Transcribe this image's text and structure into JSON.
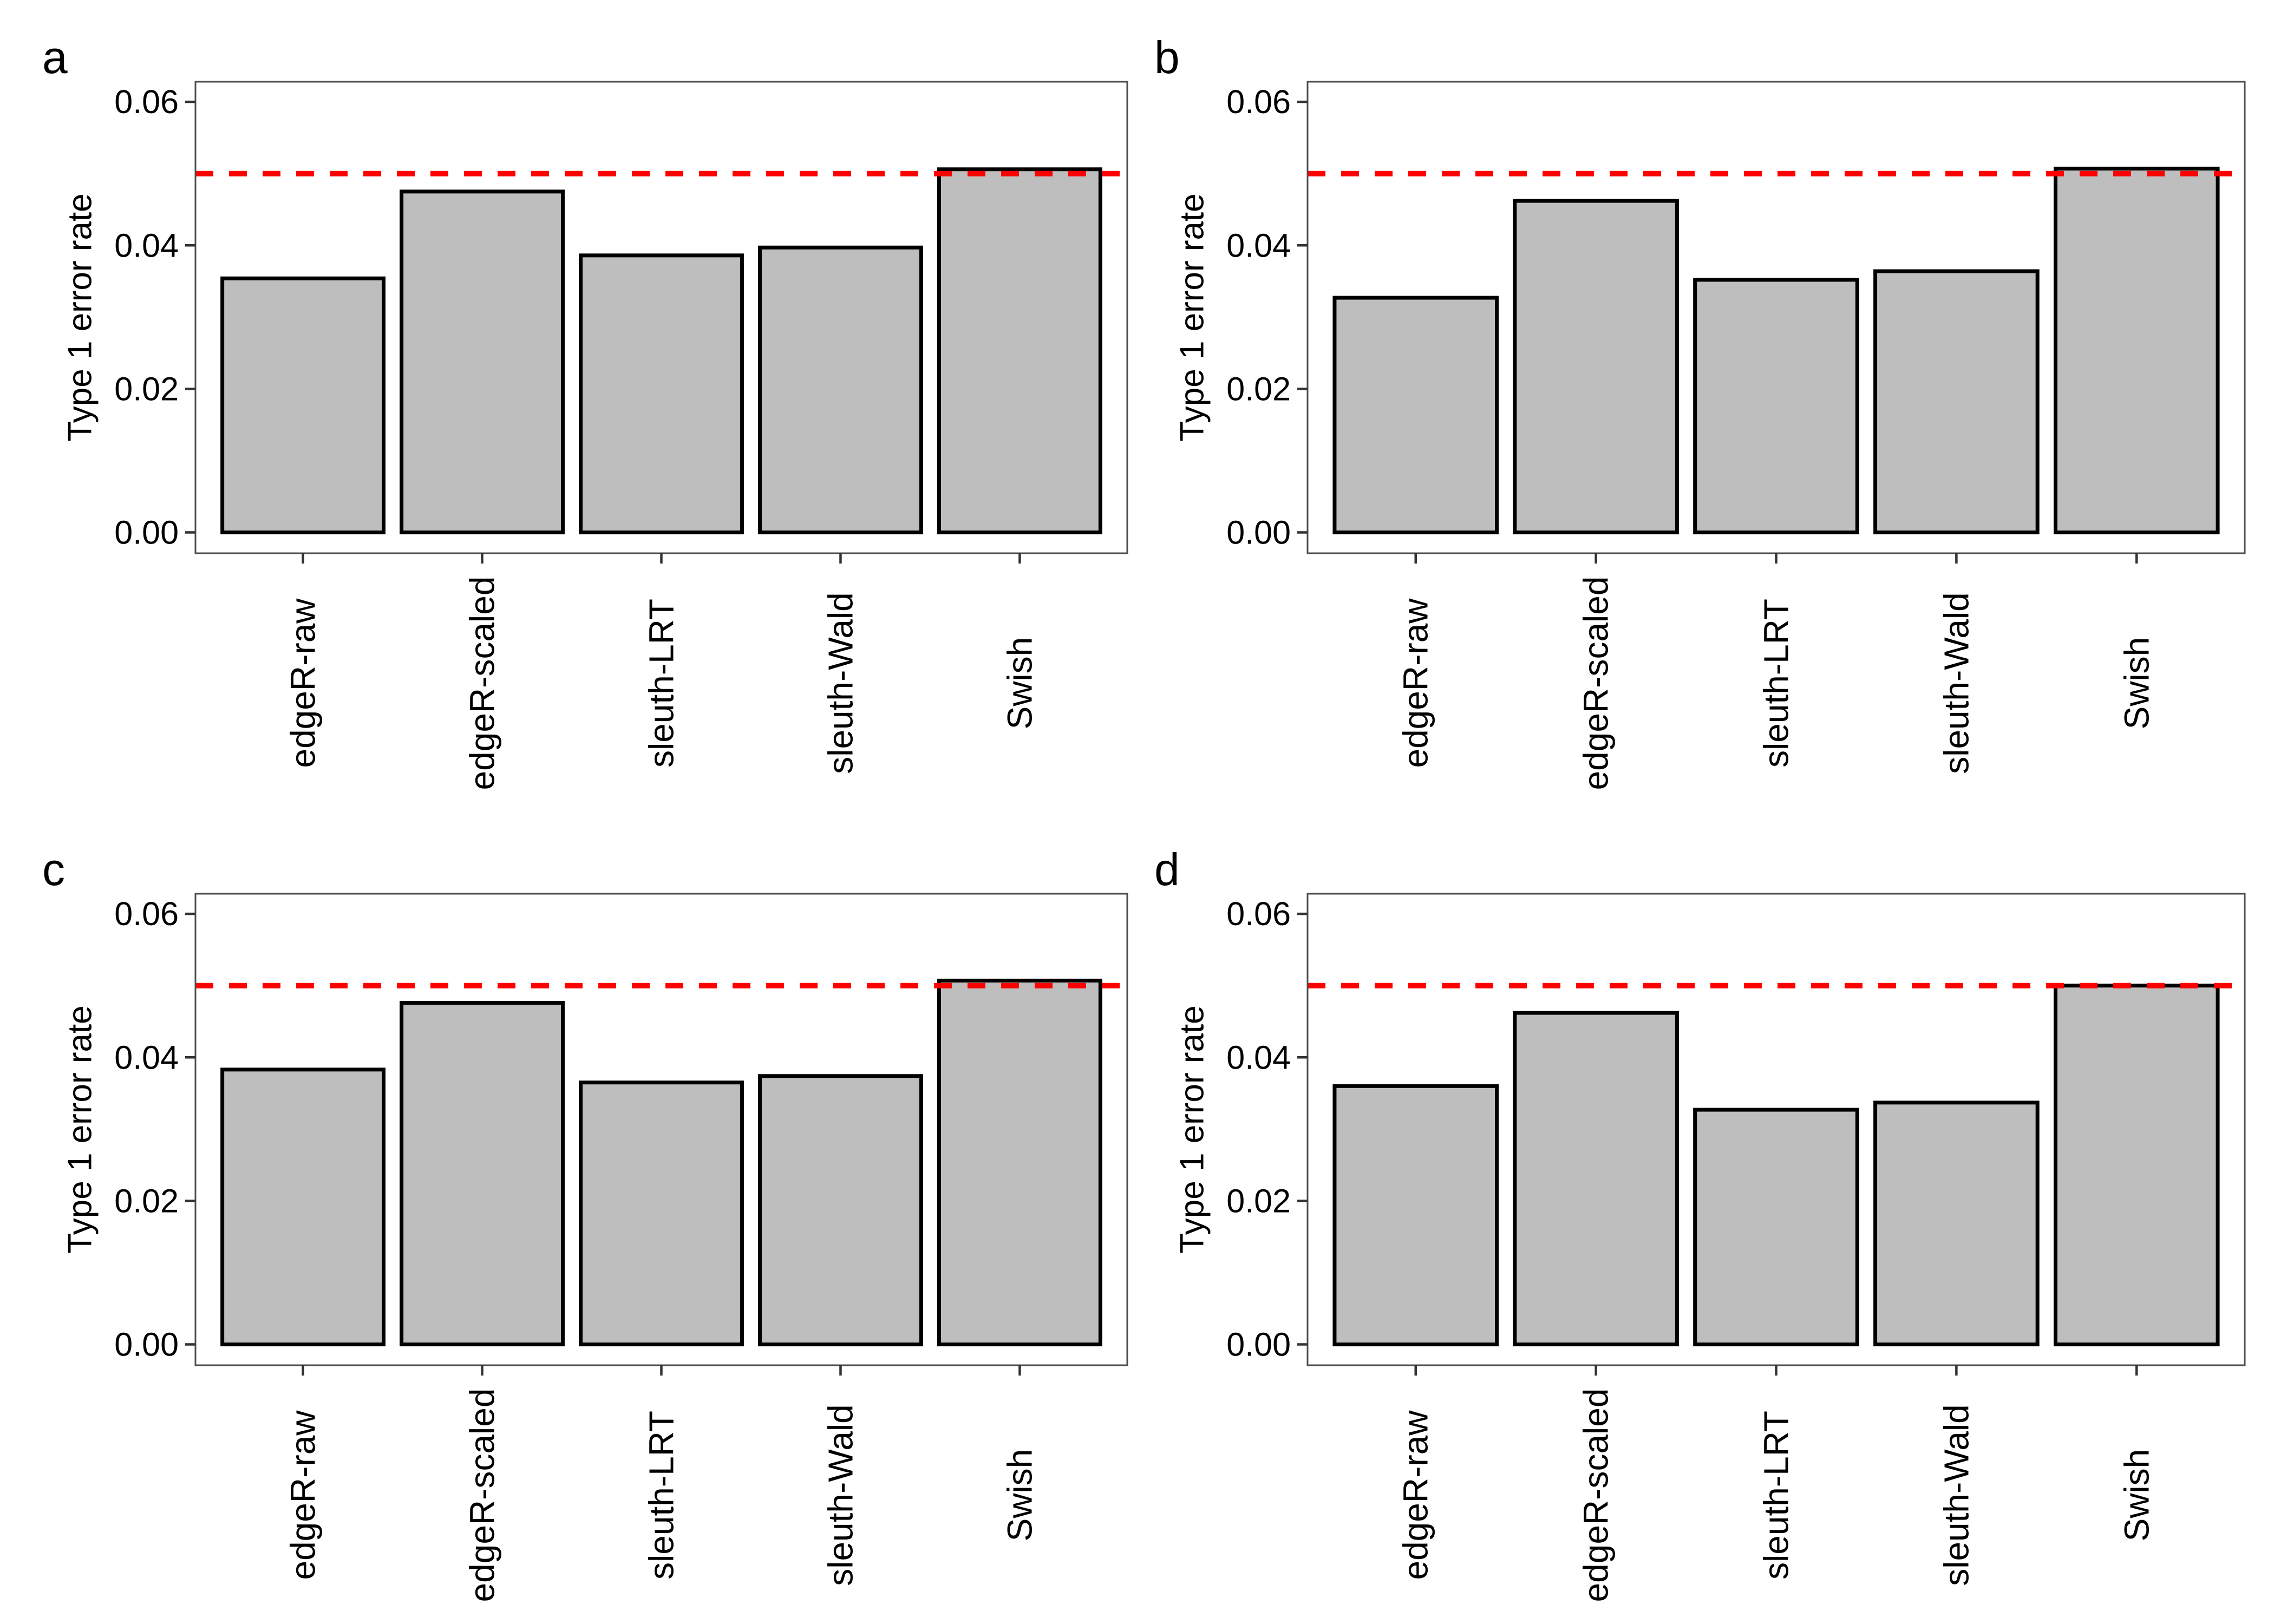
{
  "style": {
    "background": "#FFFFFF",
    "bar_fill": "#BEBEBE",
    "bar_outline": "#000000",
    "reference_line_color": "#FF0000",
    "panel_border_color": "#4D4D4D",
    "axis_tick_color": "#333333",
    "text_color": "#000000"
  },
  "chart_data": [
    {
      "panel_label": "a",
      "type": "bar",
      "title": "",
      "categories": [
        "edgeR-raw",
        "edgeR-scaled",
        "sleuth-LRT",
        "sleuth-Wald",
        "Swish"
      ],
      "values": [
        0.0354,
        0.0475,
        0.0386,
        0.0397,
        0.0506
      ],
      "xlabel": "",
      "ylabel": "Type 1 error rate",
      "yticks": [
        {
          "label": "0.00",
          "value": 0.0
        },
        {
          "label": "0.02",
          "value": 0.02
        },
        {
          "label": "0.04",
          "value": 0.04
        },
        {
          "label": "0.06",
          "value": 0.06
        }
      ],
      "ylim": [
        -0.0029,
        0.0628
      ],
      "reference_line": {
        "value": 0.05,
        "style": "dashed",
        "color": "#FF0000"
      },
      "grid": false,
      "legend": false
    },
    {
      "panel_label": "b",
      "type": "bar",
      "title": "",
      "categories": [
        "edgeR-raw",
        "edgeR-scaled",
        "sleuth-LRT",
        "sleuth-Wald",
        "Swish"
      ],
      "values": [
        0.0327,
        0.0462,
        0.0352,
        0.0364,
        0.0507
      ],
      "xlabel": "",
      "ylabel": "Type 1 error rate",
      "yticks": [
        {
          "label": "0.00",
          "value": 0.0
        },
        {
          "label": "0.02",
          "value": 0.02
        },
        {
          "label": "0.04",
          "value": 0.04
        },
        {
          "label": "0.06",
          "value": 0.06
        }
      ],
      "ylim": [
        -0.0029,
        0.0628
      ],
      "reference_line": {
        "value": 0.05,
        "style": "dashed",
        "color": "#FF0000"
      },
      "grid": false,
      "legend": false
    },
    {
      "panel_label": "c",
      "type": "bar",
      "title": "",
      "categories": [
        "edgeR-raw",
        "edgeR-scaled",
        "sleuth-LRT",
        "sleuth-Wald",
        "Swish"
      ],
      "values": [
        0.0383,
        0.0476,
        0.0365,
        0.0374,
        0.0507
      ],
      "xlabel": "",
      "ylabel": "Type 1 error rate",
      "yticks": [
        {
          "label": "0.00",
          "value": 0.0
        },
        {
          "label": "0.02",
          "value": 0.02
        },
        {
          "label": "0.04",
          "value": 0.04
        },
        {
          "label": "0.06",
          "value": 0.06
        }
      ],
      "ylim": [
        -0.0029,
        0.0628
      ],
      "reference_line": {
        "value": 0.05,
        "style": "dashed",
        "color": "#FF0000"
      },
      "grid": false,
      "legend": false
    },
    {
      "panel_label": "d",
      "type": "bar",
      "title": "",
      "categories": [
        "edgeR-raw",
        "edgeR-scaled",
        "sleuth-LRT",
        "sleuth-Wald",
        "Swish"
      ],
      "values": [
        0.036,
        0.0462,
        0.0327,
        0.0337,
        0.05
      ],
      "xlabel": "",
      "ylabel": "Type 1 error rate",
      "yticks": [
        {
          "label": "0.00",
          "value": 0.0
        },
        {
          "label": "0.02",
          "value": 0.02
        },
        {
          "label": "0.04",
          "value": 0.04
        },
        {
          "label": "0.06",
          "value": 0.06
        }
      ],
      "ylim": [
        -0.0029,
        0.0628
      ],
      "reference_line": {
        "value": 0.05,
        "style": "dashed",
        "color": "#FF0000"
      },
      "grid": false,
      "legend": false
    }
  ]
}
